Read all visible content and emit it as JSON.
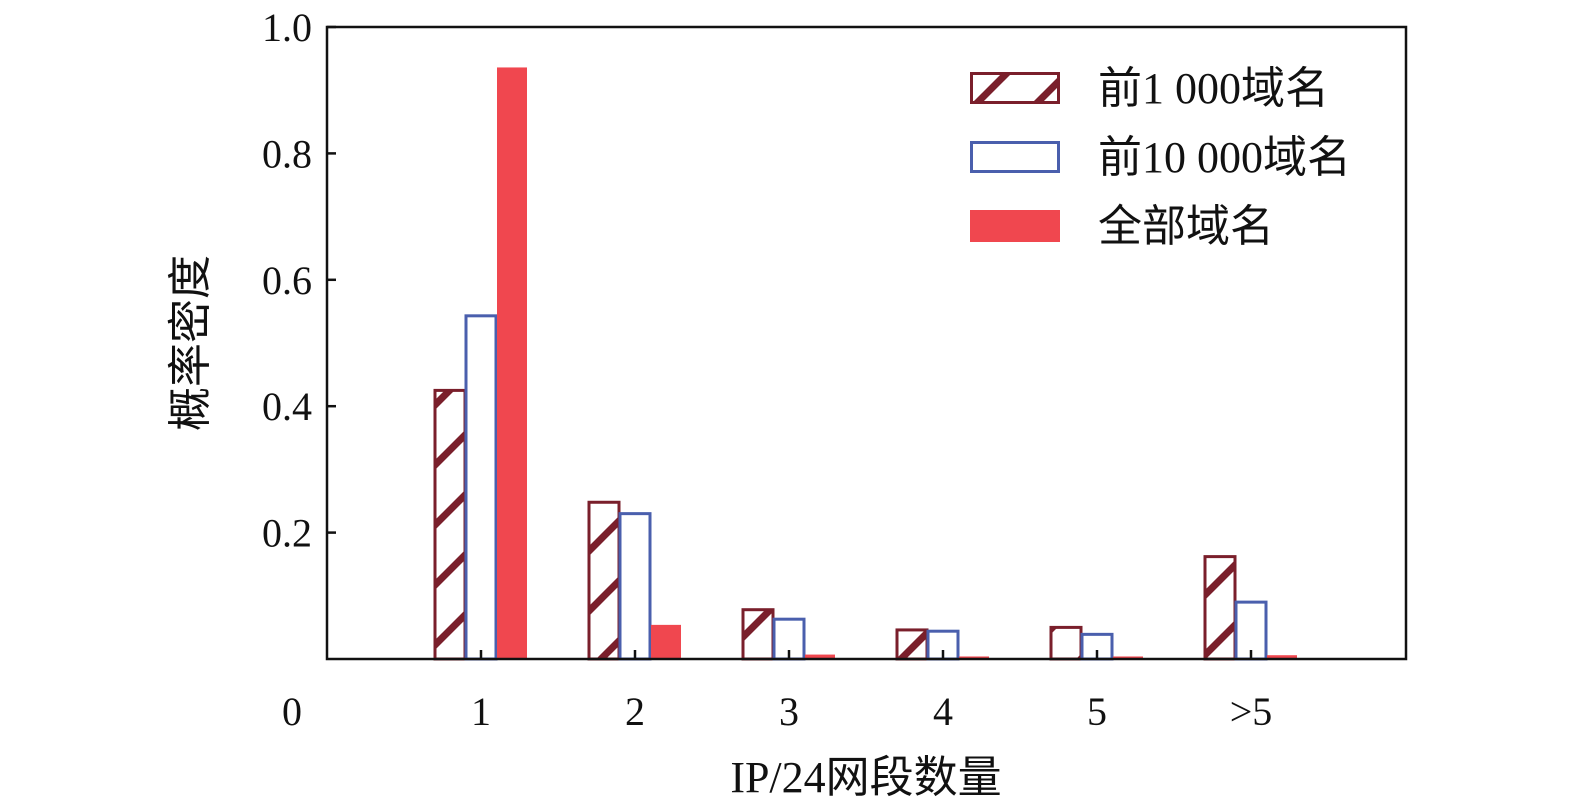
{
  "chart_data": {
    "type": "bar",
    "xlabel": "IP/24网段数量",
    "ylabel": "概率密度",
    "categories": [
      "1",
      "2",
      "3",
      "4",
      "5",
      ">5"
    ],
    "origin_label": "0",
    "ylim": [
      0,
      1.0
    ],
    "yticks": [
      0.2,
      0.4,
      0.6,
      0.8,
      1.0
    ],
    "ytick_labels": [
      "0.2",
      "0.4",
      "0.6",
      "0.8",
      "1.0"
    ],
    "legend_position": "top-right",
    "grid": false,
    "series": [
      {
        "name": "前1 000域名",
        "style": "hatched",
        "color": "#7a1f2b",
        "values": [
          0.425,
          0.248,
          0.078,
          0.046,
          0.05,
          0.162
        ]
      },
      {
        "name": "前10 000域名",
        "style": "outline",
        "color": "#4a5fad",
        "values": [
          0.543,
          0.23,
          0.063,
          0.044,
          0.039,
          0.09
        ]
      },
      {
        "name": "全部域名",
        "style": "filled",
        "color": "#f0474f",
        "values": [
          0.936,
          0.054,
          0.007,
          0.004,
          0.004,
          0.006
        ]
      }
    ]
  }
}
